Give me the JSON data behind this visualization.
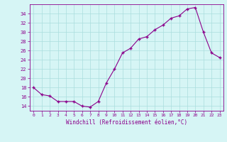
{
  "x": [
    0,
    1,
    2,
    3,
    4,
    5,
    6,
    7,
    8,
    9,
    10,
    11,
    12,
    13,
    14,
    15,
    16,
    17,
    18,
    19,
    20,
    21,
    22,
    23
  ],
  "y": [
    18,
    16.5,
    16.2,
    15.0,
    15.0,
    15.0,
    14.0,
    13.8,
    15.0,
    19.0,
    22.0,
    25.5,
    26.5,
    28.5,
    29.0,
    30.5,
    31.5,
    33.0,
    33.5,
    35.0,
    35.3,
    30.0,
    25.5,
    24.5
  ],
  "ylim": [
    13,
    36
  ],
  "yticks": [
    14,
    16,
    18,
    20,
    22,
    24,
    26,
    28,
    30,
    32,
    34
  ],
  "line_color": "#8B008B",
  "marker": "+",
  "bg_color": "#d6f5f5",
  "grid_color": "#aadddd",
  "xlabel": "Windchill (Refroidissement éolien,°C)",
  "xlabel_color": "#8B008B",
  "tick_color": "#8B008B",
  "spine_color": "#8B008B"
}
